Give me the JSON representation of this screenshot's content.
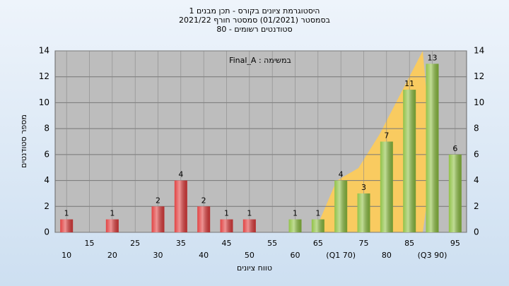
{
  "chart_data": {
    "type": "bar",
    "title_lines": [
      "היסטוגרמת ציונים בקורס - תכן מבנים 1",
      "בסמסטר  (01/2021)  סמסטר חורף 2021/22",
      "סטודנטים רשומים - 80"
    ],
    "annotation": "במשימה : Final_A",
    "x_label": "טווח ציונים",
    "y_label": "מספר סטודנטים",
    "categories": [
      "10",
      "15",
      "20",
      "25",
      "30",
      "35",
      "40",
      "45",
      "50",
      "55",
      "60",
      "65",
      "(Q1 70)",
      "75",
      "80",
      "85",
      "(Q3 90)",
      "95"
    ],
    "values": [
      1,
      0,
      1,
      0,
      2,
      4,
      2,
      1,
      1,
      0,
      1,
      1,
      4,
      3,
      7,
      11,
      13,
      6
    ],
    "colors": [
      "#e03a3a",
      "#e03a3a",
      "#e03a3a",
      "#e03a3a",
      "#e03a3a",
      "#e03a3a",
      "#e03a3a",
      "#e03a3a",
      "#e03a3a",
      "#e03a3a",
      "#8cbf3f",
      "#8cbf3f",
      "#8cbf3f",
      "#8cbf3f",
      "#8cbf3f",
      "#8cbf3f",
      "#8cbf3f",
      "#8cbf3f"
    ],
    "ylim": [
      0,
      14
    ],
    "yticks": [
      0,
      2,
      4,
      6,
      8,
      10,
      12,
      14
    ],
    "grid": true
  }
}
